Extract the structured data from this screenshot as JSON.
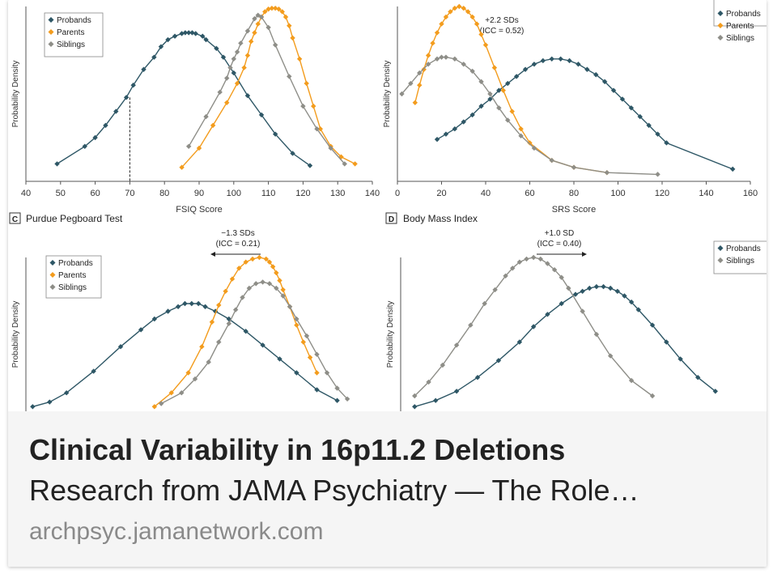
{
  "caption": {
    "title": "Clinical Variability in 16p11.2 Deletions",
    "subtitle": "Research from JAMA Psychiatry — The Role…",
    "domain": "archpsyc.jamanetwork.com"
  },
  "colors": {
    "probands": "#2e5766",
    "parents": "#f39c1d",
    "siblings": "#8e8e88"
  },
  "chart_data": [
    {
      "type": "line",
      "panel_letter": "",
      "title": "",
      "xlabel": "FSIQ Score",
      "ylabel": "Probability Density",
      "xlim": [
        40,
        140
      ],
      "ylim": [
        0,
        1
      ],
      "xticks": [
        40,
        50,
        60,
        70,
        80,
        90,
        100,
        110,
        120,
        130,
        140
      ],
      "legend": "top-left",
      "annotation": "",
      "marker_x": 70,
      "series": [
        {
          "name": "Probands",
          "color_key": "probands",
          "x": [
            49,
            57,
            60,
            63,
            66,
            69,
            71,
            74,
            77,
            79,
            81,
            83,
            85,
            86,
            87,
            88,
            89,
            91,
            92,
            95,
            97,
            100,
            104,
            108,
            112,
            117,
            122
          ],
          "y": [
            0.1,
            0.2,
            0.25,
            0.32,
            0.4,
            0.48,
            0.55,
            0.64,
            0.71,
            0.77,
            0.81,
            0.83,
            0.845,
            0.85,
            0.85,
            0.85,
            0.845,
            0.83,
            0.81,
            0.76,
            0.71,
            0.62,
            0.49,
            0.38,
            0.27,
            0.16,
            0.09
          ]
        },
        {
          "name": "Parents",
          "color_key": "parents",
          "x": [
            85,
            90,
            94,
            98,
            101,
            103,
            104,
            105,
            106,
            107,
            108,
            109,
            110,
            111,
            112,
            113,
            114,
            115,
            116,
            117,
            119,
            121,
            123,
            125,
            128,
            131,
            135
          ],
          "y": [
            0.08,
            0.19,
            0.32,
            0.45,
            0.56,
            0.65,
            0.72,
            0.8,
            0.85,
            0.9,
            0.94,
            0.97,
            0.985,
            0.99,
            0.99,
            0.985,
            0.97,
            0.94,
            0.89,
            0.82,
            0.7,
            0.56,
            0.43,
            0.3,
            0.2,
            0.14,
            0.1
          ]
        },
        {
          "name": "Siblings",
          "color_key": "siblings",
          "x": [
            87,
            92,
            96,
            98,
            99,
            100,
            101,
            102,
            104,
            106,
            107,
            108,
            110,
            112,
            116,
            120,
            124,
            128,
            132
          ],
          "y": [
            0.2,
            0.37,
            0.51,
            0.59,
            0.65,
            0.7,
            0.74,
            0.79,
            0.86,
            0.93,
            0.95,
            0.94,
            0.88,
            0.78,
            0.6,
            0.43,
            0.3,
            0.19,
            0.1
          ]
        }
      ]
    },
    {
      "type": "line",
      "panel_letter": "",
      "title": "",
      "xlabel": "SRS Score",
      "ylabel": "Probability Density",
      "xlim": [
        0,
        160
      ],
      "ylim": [
        0,
        1
      ],
      "xticks": [
        0,
        20,
        40,
        60,
        80,
        100,
        120,
        140,
        160
      ],
      "legend": "top-right",
      "annotation": "+2.2 SDs\n(ICC = 0.52)",
      "series": [
        {
          "name": "Probands",
          "color_key": "probands",
          "x": [
            18,
            22,
            26,
            30,
            34,
            38,
            42,
            46,
            50,
            54,
            58,
            62,
            66,
            70,
            74,
            78,
            82,
            86,
            90,
            94,
            98,
            102,
            106,
            110,
            114,
            118,
            122,
            152
          ],
          "y": [
            0.24,
            0.27,
            0.3,
            0.34,
            0.38,
            0.43,
            0.47,
            0.52,
            0.56,
            0.6,
            0.64,
            0.67,
            0.69,
            0.7,
            0.7,
            0.69,
            0.67,
            0.64,
            0.61,
            0.57,
            0.52,
            0.47,
            0.42,
            0.37,
            0.32,
            0.27,
            0.22,
            0.07
          ]
        },
        {
          "name": "Parents",
          "color_key": "parents",
          "x": [
            8,
            10,
            12,
            14,
            16,
            18,
            20,
            22,
            24,
            26,
            28,
            30,
            32,
            34,
            36,
            38,
            40,
            44,
            48,
            52,
            56,
            60,
            70,
            80,
            95
          ],
          "y": [
            0.45,
            0.55,
            0.64,
            0.72,
            0.79,
            0.85,
            0.9,
            0.94,
            0.97,
            0.99,
            1.0,
            0.99,
            0.97,
            0.94,
            0.9,
            0.84,
            0.78,
            0.65,
            0.52,
            0.4,
            0.3,
            0.22,
            0.12,
            0.08,
            0.05
          ]
        },
        {
          "name": "Siblings",
          "color_key": "siblings",
          "x": [
            2,
            6,
            10,
            14,
            18,
            20,
            22,
            26,
            30,
            34,
            38,
            42,
            46,
            50,
            56,
            62,
            70,
            80,
            95,
            118
          ],
          "y": [
            0.5,
            0.56,
            0.62,
            0.67,
            0.7,
            0.71,
            0.71,
            0.7,
            0.67,
            0.63,
            0.57,
            0.5,
            0.42,
            0.35,
            0.26,
            0.19,
            0.12,
            0.08,
            0.05,
            0.04
          ]
        }
      ]
    },
    {
      "type": "line",
      "panel_letter": "C",
      "title": "Purdue Pegboard Test",
      "xlabel": "",
      "ylabel": "Probability Density",
      "xlim": [
        0,
        1
      ],
      "ylim": [
        0,
        1
      ],
      "legend": "top-left",
      "annotation": "−1.3 SDs\n(ICC = 0.21)",
      "arrow": "left",
      "series": [
        {
          "name": "Probands",
          "color_key": "probands",
          "x": [
            0.02,
            0.07,
            0.12,
            0.2,
            0.28,
            0.34,
            0.38,
            0.42,
            0.45,
            0.47,
            0.49,
            0.51,
            0.53,
            0.56,
            0.6,
            0.65,
            0.7,
            0.75,
            0.8,
            0.86,
            0.92
          ],
          "y": [
            0.03,
            0.06,
            0.12,
            0.26,
            0.42,
            0.53,
            0.6,
            0.65,
            0.68,
            0.7,
            0.7,
            0.7,
            0.68,
            0.65,
            0.6,
            0.52,
            0.43,
            0.34,
            0.25,
            0.14,
            0.07
          ]
        },
        {
          "name": "Parents",
          "color_key": "parents",
          "x": [
            0.38,
            0.43,
            0.48,
            0.52,
            0.55,
            0.57,
            0.59,
            0.61,
            0.63,
            0.65,
            0.67,
            0.69,
            0.71,
            0.72,
            0.73,
            0.74,
            0.75,
            0.76,
            0.78,
            0.8,
            0.82,
            0.84,
            0.86
          ],
          "y": [
            0.03,
            0.12,
            0.25,
            0.42,
            0.58,
            0.69,
            0.78,
            0.86,
            0.93,
            0.97,
            0.99,
            1.0,
            0.99,
            0.97,
            0.94,
            0.9,
            0.85,
            0.79,
            0.68,
            0.56,
            0.45,
            0.35,
            0.25
          ]
        },
        {
          "name": "Siblings",
          "color_key": "siblings",
          "x": [
            0.4,
            0.46,
            0.5,
            0.54,
            0.57,
            0.6,
            0.62,
            0.64,
            0.66,
            0.68,
            0.7,
            0.72,
            0.74,
            0.76,
            0.78,
            0.8,
            0.83,
            0.86,
            0.89,
            0.92,
            0.95
          ],
          "y": [
            0.05,
            0.12,
            0.21,
            0.32,
            0.45,
            0.57,
            0.66,
            0.74,
            0.8,
            0.83,
            0.84,
            0.83,
            0.8,
            0.75,
            0.68,
            0.6,
            0.49,
            0.37,
            0.25,
            0.15,
            0.08
          ]
        }
      ]
    },
    {
      "type": "line",
      "panel_letter": "D",
      "title": "Body Mass Index",
      "xlabel": "",
      "ylabel": "Probability Density",
      "xlim": [
        0,
        1
      ],
      "ylim": [
        0,
        1
      ],
      "legend": "top-right",
      "annotation": "+1.0 SD\n(ICC = 0.40)",
      "arrow": "right",
      "series": [
        {
          "name": "Probands",
          "color_key": "probands",
          "x": [
            0.04,
            0.1,
            0.16,
            0.22,
            0.28,
            0.34,
            0.38,
            0.42,
            0.46,
            0.5,
            0.52,
            0.54,
            0.56,
            0.58,
            0.6,
            0.62,
            0.64,
            0.66,
            0.68,
            0.72,
            0.76,
            0.8,
            0.85,
            0.9
          ],
          "y": [
            0.03,
            0.07,
            0.13,
            0.22,
            0.33,
            0.45,
            0.55,
            0.63,
            0.7,
            0.76,
            0.78,
            0.8,
            0.81,
            0.81,
            0.8,
            0.78,
            0.75,
            0.71,
            0.66,
            0.56,
            0.45,
            0.34,
            0.22,
            0.13
          ]
        },
        {
          "name": "Siblings",
          "color_key": "siblings",
          "x": [
            0.04,
            0.08,
            0.12,
            0.16,
            0.2,
            0.24,
            0.27,
            0.3,
            0.32,
            0.34,
            0.36,
            0.38,
            0.4,
            0.42,
            0.44,
            0.46,
            0.48,
            0.52,
            0.56,
            0.6,
            0.66,
            0.72
          ],
          "y": [
            0.1,
            0.19,
            0.3,
            0.43,
            0.56,
            0.7,
            0.79,
            0.88,
            0.93,
            0.97,
            0.99,
            1.0,
            0.99,
            0.96,
            0.92,
            0.87,
            0.8,
            0.65,
            0.5,
            0.36,
            0.2,
            0.1
          ]
        }
      ]
    }
  ]
}
